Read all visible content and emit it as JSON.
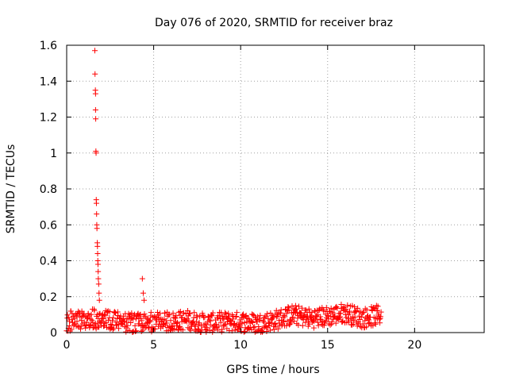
{
  "chart_data": {
    "type": "scatter",
    "title": "Day 076 of 2020, SRMTID for receiver braz",
    "xlabel": "GPS time / hours",
    "ylabel": "SRMTID / TECUs",
    "xlim": [
      0,
      24
    ],
    "ylim": [
      0,
      1.6
    ],
    "x_ticks": [
      0,
      5,
      10,
      15,
      20
    ],
    "x_tick_labels": [
      "0",
      "5",
      "10",
      "15",
      "20"
    ],
    "y_ticks": [
      0,
      0.2,
      0.4,
      0.6,
      0.8,
      1.0,
      1.2,
      1.4,
      1.6
    ],
    "y_tick_labels": [
      "0",
      "0.2",
      "0.4",
      "0.6",
      "0.8",
      "1",
      "1.2",
      "1.4",
      "1.6"
    ],
    "grid": true,
    "marker": "+",
    "series": [
      {
        "name": "SRMTID",
        "color": "#ff0000",
        "x": [
          1.62,
          1.63,
          1.65,
          1.66,
          1.66,
          1.67,
          1.68,
          1.69,
          1.7,
          1.71,
          1.72,
          1.73,
          1.74,
          1.76,
          1.77,
          1.78,
          1.79,
          1.8,
          1.81,
          1.82,
          1.84,
          1.86,
          1.88,
          4.35,
          4.4,
          4.45
        ],
        "y": [
          1.57,
          1.44,
          1.35,
          1.33,
          1.24,
          1.19,
          1.01,
          1.0,
          0.74,
          0.72,
          0.66,
          0.6,
          0.58,
          0.5,
          0.48,
          0.44,
          0.4,
          0.38,
          0.34,
          0.3,
          0.27,
          0.22,
          0.18,
          0.3,
          0.22,
          0.18
        ],
        "baseline": {
          "x_range": [
            0,
            18.1
          ],
          "anchors_x": [
            0,
            1,
            2,
            3,
            4,
            5,
            6,
            7,
            8,
            9,
            10,
            11,
            12,
            13,
            14,
            15,
            16,
            17,
            18.1
          ],
          "anchors_y": [
            0.06,
            0.08,
            0.07,
            0.06,
            0.05,
            0.06,
            0.06,
            0.07,
            0.05,
            0.06,
            0.06,
            0.05,
            0.07,
            0.1,
            0.08,
            0.09,
            0.11,
            0.08,
            0.1
          ],
          "spread": 0.07
        }
      }
    ]
  }
}
